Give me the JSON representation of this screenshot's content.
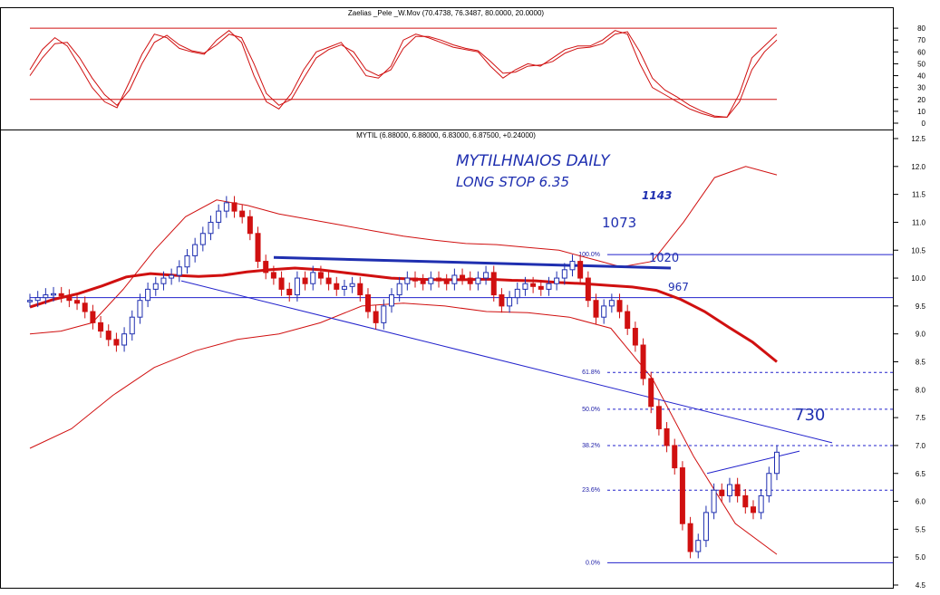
{
  "chart_data": [
    {
      "type": "line",
      "title": "Zaelias _Pele _W.Mov (70.4738, 76.3487, 80.0000, 20.0000)",
      "ylim": [
        0,
        90
      ],
      "yticks": [
        "80",
        "70",
        "60",
        "50",
        "40",
        "30",
        "20",
        "10",
        "0"
      ],
      "levels": [
        80,
        20
      ],
      "series": [
        {
          "values": [
            45,
            62,
            72,
            65,
            48,
            30,
            18,
            13,
            35,
            58,
            75,
            72,
            63,
            60,
            58,
            70,
            78,
            68,
            40,
            18,
            12,
            25,
            45,
            60,
            64,
            68,
            55,
            40,
            38,
            48,
            70,
            75,
            72,
            68,
            64,
            62,
            60,
            48,
            38,
            45,
            50,
            48,
            55,
            62,
            65,
            65,
            70,
            78,
            75,
            50,
            30,
            24,
            18,
            12,
            8,
            5,
            5,
            25,
            55,
            65,
            75
          ],
          "color": "#d01010"
        },
        {
          "values": [
            40,
            55,
            67,
            68,
            55,
            38,
            24,
            15,
            28,
            50,
            68,
            74,
            66,
            61,
            59,
            66,
            75,
            72,
            50,
            25,
            15,
            20,
            38,
            55,
            62,
            66,
            60,
            45,
            40,
            45,
            63,
            73,
            73,
            70,
            66,
            63,
            61,
            52,
            42,
            43,
            48,
            49,
            52,
            59,
            63,
            64,
            67,
            75,
            77,
            60,
            38,
            28,
            22,
            15,
            10,
            6,
            5,
            18,
            45,
            60,
            70
          ],
          "color": "#d01010"
        }
      ]
    },
    {
      "type": "candlestick",
      "title": "MYTIL (6.88000, 6.88000, 6.83000, 6.87500, +0.24000)",
      "ylim": [
        4.5,
        12.5
      ],
      "yticks": [
        "12.5",
        "12.0",
        "11.5",
        "11.0",
        "10.5",
        "10.0",
        "9.5",
        "9.0",
        "8.5",
        "8.0",
        "7.5",
        "7.0",
        "6.5",
        "6.0",
        "5.5",
        "5.0",
        "4.5"
      ],
      "annotations": {
        "line1": "MYTILHNAIOS DAILY",
        "line2": "LONG STOP 6.35",
        "n1143": "1143",
        "n1073": "1073",
        "n1020": "1020",
        "n967": "967",
        "n730": "730"
      },
      "fib_levels": [
        {
          "label": "100.0%",
          "value": 10.42
        },
        {
          "label": "61.8%",
          "value": 8.31
        },
        {
          "label": "50.0%",
          "value": 7.65
        },
        {
          "label": "38.2%",
          "value": 7.0
        },
        {
          "label": "23.6%",
          "value": 6.2
        },
        {
          "label": "0.0%",
          "value": 4.9
        }
      ],
      "horizontal_lines": [
        10.42,
        9.65,
        4.9
      ],
      "close_series": [
        9.6,
        9.65,
        9.7,
        9.72,
        9.68,
        9.6,
        9.55,
        9.4,
        9.2,
        9.05,
        8.9,
        8.8,
        9.0,
        9.3,
        9.6,
        9.8,
        9.9,
        10.0,
        10.05,
        10.2,
        10.4,
        10.6,
        10.8,
        11.0,
        11.2,
        11.35,
        11.2,
        11.1,
        10.8,
        10.3,
        10.1,
        10.0,
        9.8,
        9.7,
        10.0,
        9.9,
        10.1,
        10.0,
        9.9,
        9.8,
        9.85,
        9.9,
        9.7,
        9.4,
        9.2,
        9.5,
        9.7,
        9.9,
        10.0,
        9.95,
        9.9,
        10.0,
        9.95,
        9.9,
        10.05,
        10.0,
        9.9,
        10.0,
        10.1,
        9.7,
        9.5,
        9.65,
        9.8,
        9.9,
        9.85,
        9.8,
        9.9,
        10.0,
        10.15,
        10.3,
        10.0,
        9.6,
        9.3,
        9.5,
        9.6,
        9.4,
        9.1,
        8.8,
        8.2,
        7.7,
        7.3,
        7.0,
        6.6,
        5.6,
        5.1,
        5.3,
        5.8,
        6.2,
        6.1,
        6.3,
        6.1,
        5.9,
        5.8,
        6.1,
        6.5,
        6.88
      ],
      "red_series": [
        9.48,
        9.62,
        9.72,
        9.86,
        10.02,
        10.08,
        10.05,
        10.03,
        10.05,
        10.11,
        10.15,
        10.18,
        10.15,
        10.1,
        10.05,
        10.0,
        9.98,
        9.97,
        9.97,
        9.98,
        9.96,
        9.95,
        9.92,
        9.9,
        9.87,
        9.84,
        9.78,
        9.62,
        9.4,
        9.12,
        8.85,
        8.5
      ],
      "blue_line": [
        [
          10.37,
          10.18
        ]
      ],
      "trendlines": {
        "down": [
          9.95,
          7.05
        ],
        "up": [
          6.5,
          6.9
        ]
      },
      "bollinger_upper": [
        9.0,
        9.05,
        9.2,
        9.8,
        10.5,
        11.1,
        11.4,
        11.3,
        11.15,
        11.05,
        10.95,
        10.85,
        10.75,
        10.68,
        10.62,
        10.6,
        10.55,
        10.5,
        10.35,
        10.2,
        10.3,
        11.0,
        11.8,
        12.0,
        11.85
      ],
      "bollinger_lower": [
        6.95,
        7.3,
        7.9,
        8.4,
        8.7,
        8.9,
        9.0,
        9.2,
        9.5,
        9.55,
        9.5,
        9.4,
        9.38,
        9.3,
        9.1,
        8.2,
        6.8,
        5.6,
        5.05
      ]
    }
  ]
}
